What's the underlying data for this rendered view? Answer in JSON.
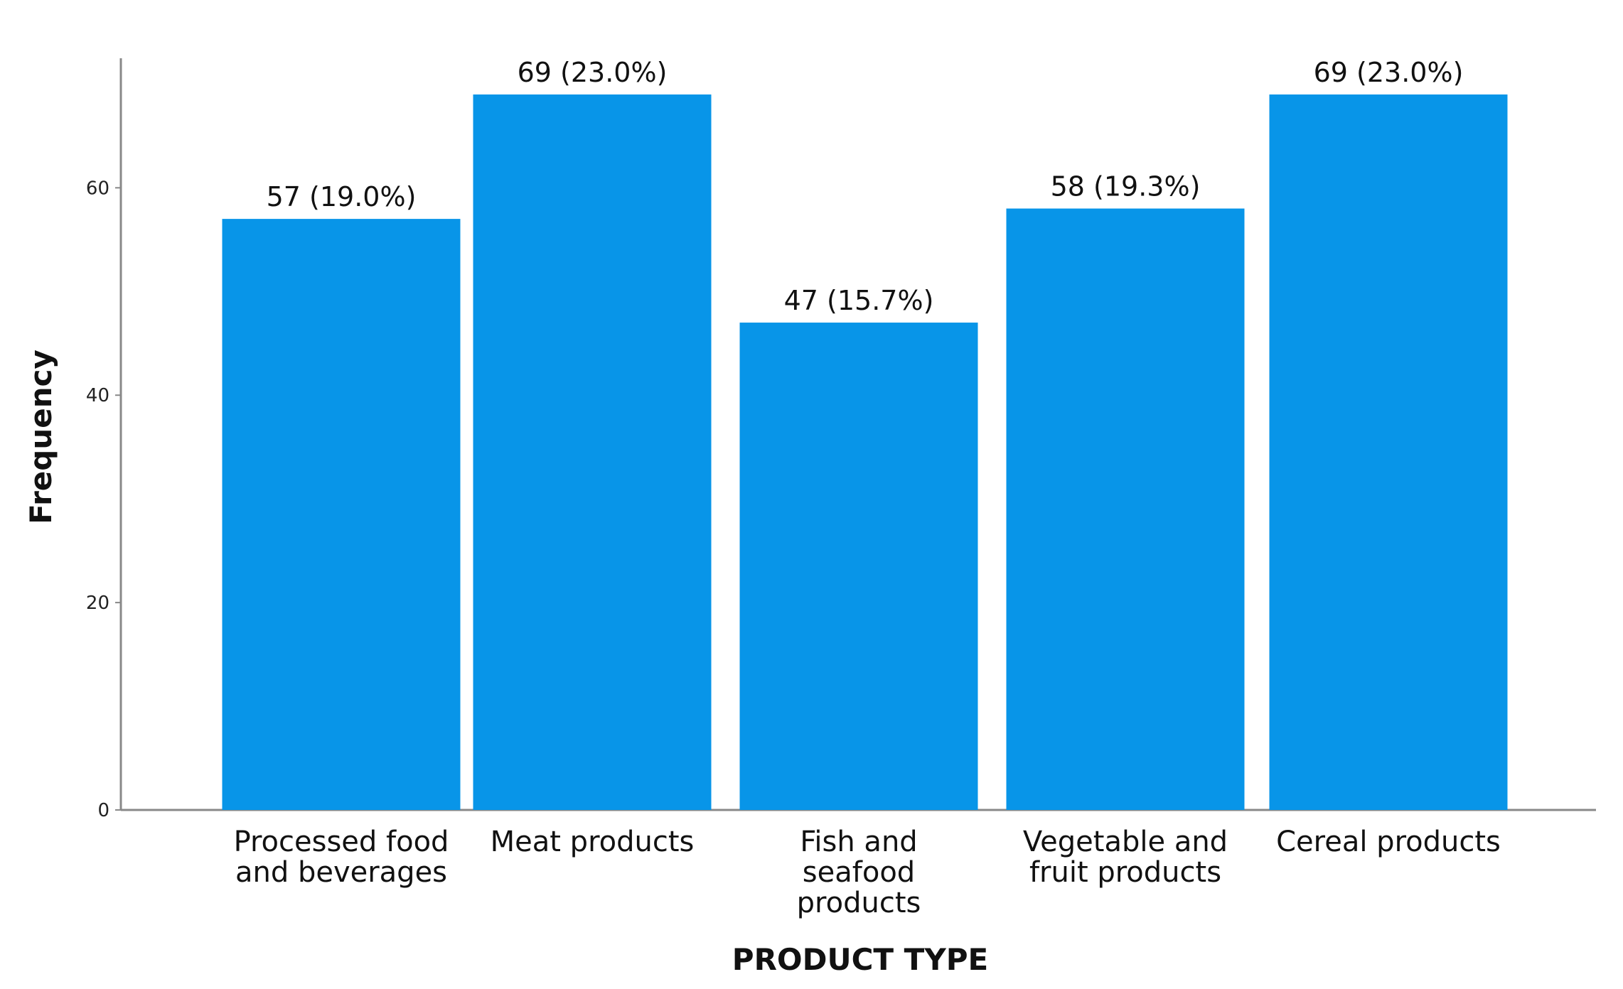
{
  "chart_data": {
    "type": "bar",
    "title": "",
    "xlabel": "PRODUCT TYPE",
    "ylabel": "Frequency",
    "categories": [
      [
        "Processed food",
        "and beverages"
      ],
      [
        "Meat products"
      ],
      [
        "Fish and",
        "seafood",
        "products"
      ],
      [
        "Vegetable and",
        "fruit products"
      ],
      [
        "Cereal products"
      ]
    ],
    "values": [
      57,
      69,
      47,
      58,
      69
    ],
    "value_labels": [
      "57 (19.0%)",
      "69 (23.0%)",
      "47 (15.7%)",
      "58 (19.3%)",
      "69 (23.0%)"
    ],
    "yticks": [
      0,
      20,
      40,
      60
    ],
    "ylim": [
      0,
      74
    ],
    "grid": false,
    "legend": "none",
    "bar_color": "#0895e8",
    "axis_color": "#888888"
  }
}
